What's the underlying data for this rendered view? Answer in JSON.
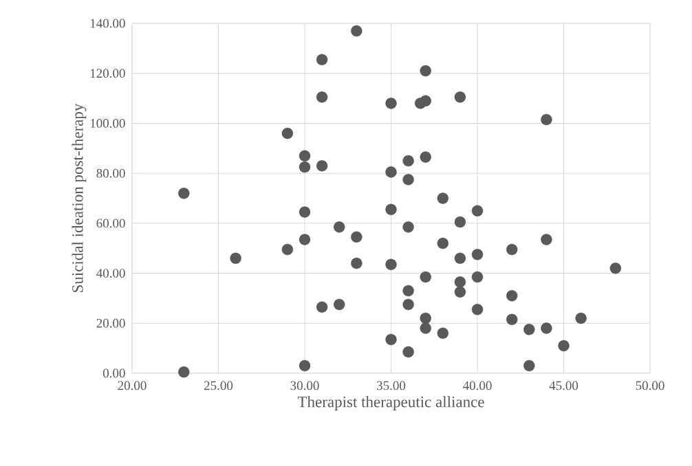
{
  "chart_data": {
    "type": "scatter",
    "xlabel": "Therapist therapeutic alliance",
    "ylabel": "Suicidal ideation post-therapy",
    "x": [
      23,
      23,
      26,
      29,
      29,
      30,
      30,
      30,
      30,
      30,
      31,
      31,
      31,
      31,
      32,
      32,
      33,
      33,
      33,
      35,
      35,
      35,
      35,
      35,
      36,
      36,
      36,
      36,
      36,
      36,
      36.7,
      37,
      37,
      37,
      37,
      37,
      37,
      38,
      38,
      38,
      39,
      39,
      39,
      39,
      39,
      40,
      40,
      40,
      40,
      42,
      42,
      42,
      43,
      43,
      44,
      44,
      44,
      45,
      46,
      48
    ],
    "values": [
      72,
      0.5,
      46,
      96,
      49.5,
      87,
      82.5,
      64.5,
      53.5,
      3,
      125.5,
      110.5,
      83,
      26.5,
      58.5,
      27.5,
      137,
      54.5,
      44,
      108,
      80.5,
      65.5,
      43.5,
      13.5,
      85,
      77.5,
      58.5,
      33,
      27.5,
      8.5,
      108,
      121,
      109,
      86.5,
      38.5,
      22,
      18,
      70,
      52,
      16,
      110.5,
      60.5,
      46,
      36.5,
      32.5,
      65,
      47.5,
      38.5,
      25.5,
      49.5,
      31,
      21.5,
      17.5,
      3,
      101.5,
      53.5,
      18,
      11,
      22,
      42
    ],
    "color": "#595959",
    "marker": "circle",
    "grid": true,
    "xlim": [
      20,
      50
    ],
    "ylim": [
      0,
      140
    ],
    "xticks": [
      {
        "value": 20,
        "label": "20.00"
      },
      {
        "value": 25,
        "label": "25.00"
      },
      {
        "value": 30,
        "label": "30.00"
      },
      {
        "value": 35,
        "label": "35.00"
      },
      {
        "value": 40,
        "label": "40.00"
      },
      {
        "value": 45,
        "label": "45.00"
      },
      {
        "value": 50,
        "label": "50.00"
      }
    ],
    "yticks": [
      {
        "value": 0,
        "label": "0.00"
      },
      {
        "value": 20,
        "label": "20.00"
      },
      {
        "value": 40,
        "label": "40.00"
      },
      {
        "value": 60,
        "label": "60.00"
      },
      {
        "value": 80,
        "label": "80.00"
      },
      {
        "value": 100,
        "label": "100.00"
      },
      {
        "value": 120,
        "label": "120.00"
      },
      {
        "value": 140,
        "label": "140.00"
      }
    ]
  }
}
